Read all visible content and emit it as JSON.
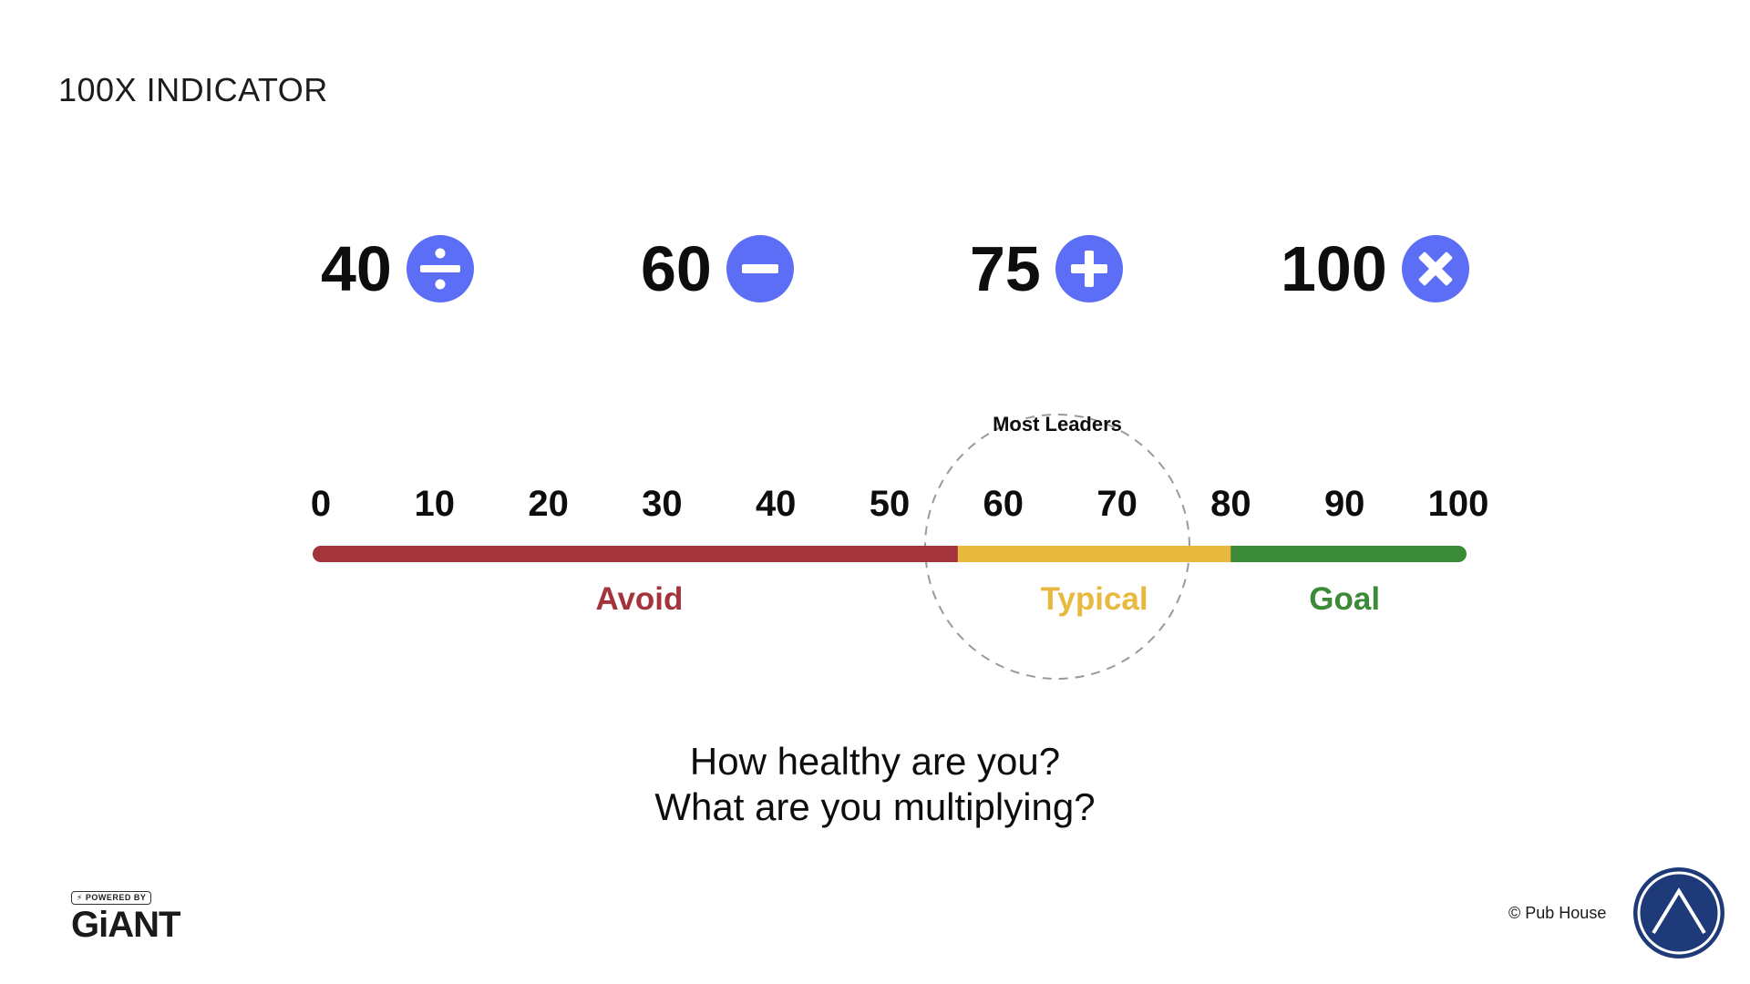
{
  "title": "100X INDICATOR",
  "operators": [
    {
      "value": "40",
      "icon": "divide-icon",
      "name": "divide"
    },
    {
      "value": "60",
      "icon": "minus-icon",
      "name": "minus"
    },
    {
      "value": "75",
      "icon": "plus-icon",
      "name": "plus"
    },
    {
      "value": "100",
      "icon": "multiply-icon",
      "name": "multiply"
    }
  ],
  "scale": {
    "ticks": [
      "0",
      "10",
      "20",
      "30",
      "40",
      "50",
      "60",
      "70",
      "80",
      "90",
      "100"
    ],
    "range": [
      0,
      100
    ],
    "zones": [
      {
        "label": "Avoid",
        "from": 0,
        "to": 56,
        "color": "#a3343c"
      },
      {
        "label": "Typical",
        "from": 56,
        "to": 80,
        "color": "#e8b93f"
      },
      {
        "label": "Goal",
        "from": 80,
        "to": 100,
        "color": "#3b8a37"
      }
    ],
    "highlight": {
      "label": "Most Leaders"
    }
  },
  "question": {
    "line1": "How healthy are you?",
    "line2": "What are you multiplying?"
  },
  "footer": {
    "powered_by": "POWERED BY",
    "brand": "GiANT",
    "copyright": "© Pub House"
  },
  "colors": {
    "accent": "#5b6ef5",
    "logo_navy": "#1e3a78"
  }
}
